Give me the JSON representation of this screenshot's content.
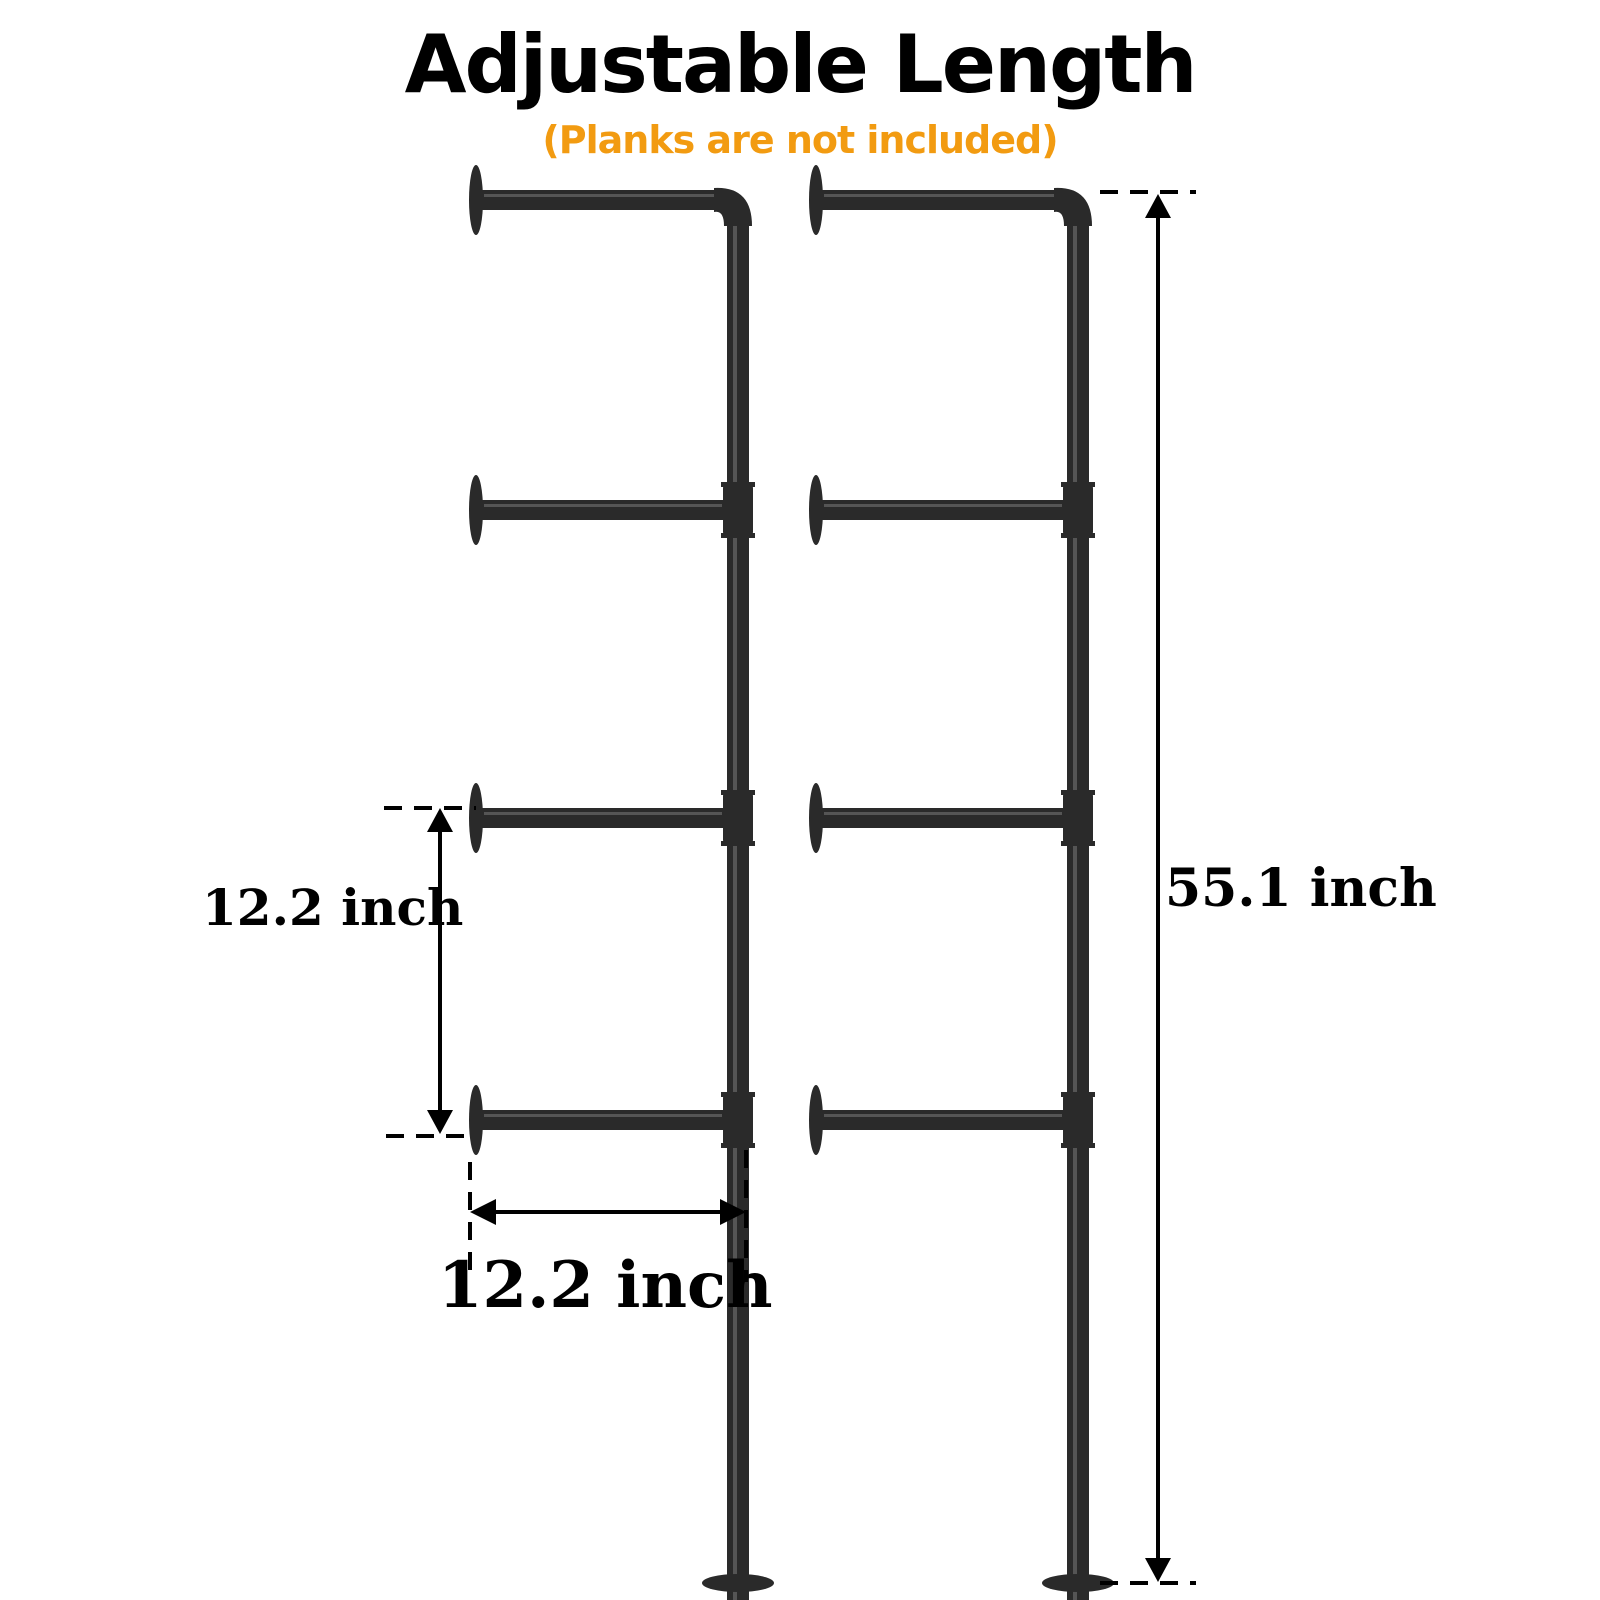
{
  "title": "Adjustable Length",
  "subtitle": "(Planks are not included)",
  "colors": {
    "subtitle": "#f29b11",
    "pipe": "#2a2a2a",
    "pipe_highlight": "#555555",
    "dimension_lines": "#000000"
  },
  "dimensions": {
    "shelf_spacing": "12.2 inch",
    "shelf_depth": "12.2 inch",
    "total_height": "55.1 inch"
  },
  "icons": [
    "wall-flange-icon",
    "floor-flange-icon",
    "pipe-elbow-icon",
    "pipe-tee-icon"
  ]
}
